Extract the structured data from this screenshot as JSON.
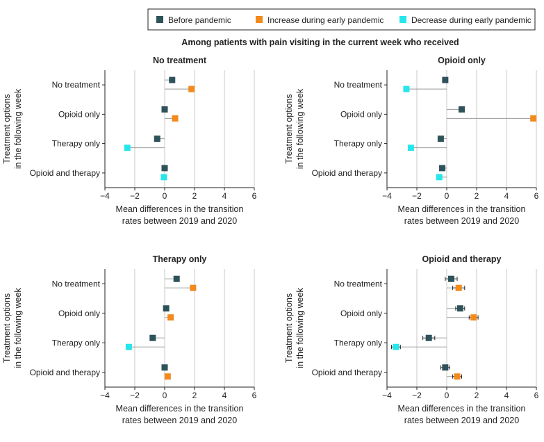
{
  "legend": {
    "items": [
      {
        "label": "Before pandemic",
        "color": "#2e5259"
      },
      {
        "label": "Increase during early pandemic",
        "color": "#f28a1e"
      },
      {
        "label": "Decrease during early pandemic",
        "color": "#27e6ea"
      }
    ]
  },
  "supertitle": "Among patients with pain visiting in the current week who received",
  "chart_data": [
    {
      "type": "scatter",
      "title": "No treatment",
      "xlabel": [
        "Mean differences in the transition",
        "rates between 2019 and 2020"
      ],
      "ylabel": [
        "Treatment options",
        "in the following week"
      ],
      "xlim": [
        -4,
        6
      ],
      "xticks": [
        -4,
        -2,
        0,
        2,
        4,
        6
      ],
      "categories": [
        "No treatment",
        "Opioid only",
        "Therapy only",
        "Opioid and therapy"
      ],
      "before": [
        0.5,
        0.0,
        -0.5,
        0.0
      ],
      "during": [
        1.8,
        0.7,
        -2.5,
        -0.05
      ],
      "before_err": [
        0.15,
        0.15,
        0.15,
        0.1
      ],
      "during_err": [
        0.15,
        0.15,
        0.15,
        0.1
      ]
    },
    {
      "type": "scatter",
      "title": "Opioid only",
      "xlabel": [
        "Mean differences in the transition",
        "rates between 2019 and 2020"
      ],
      "ylabel": [
        "Treatment options",
        "in the following week"
      ],
      "xlim": [
        -4,
        6
      ],
      "xticks": [
        -4,
        -2,
        0,
        2,
        4,
        6
      ],
      "categories": [
        "No treatment",
        "Opioid only",
        "Therapy only",
        "Opioid and therapy"
      ],
      "before": [
        -0.1,
        1.0,
        -0.4,
        -0.3
      ],
      "during": [
        -2.7,
        5.8,
        -2.4,
        -0.5
      ],
      "before_err": [
        0.1,
        0.15,
        0.1,
        0.1
      ],
      "during_err": [
        0.1,
        0.15,
        0.1,
        0.1
      ]
    },
    {
      "type": "scatter",
      "title": "Therapy only",
      "xlabel": [
        "Mean differences in the transition",
        "rates between 2019 and 2020"
      ],
      "ylabel": [
        "Treatment options",
        "in the following week"
      ],
      "xlim": [
        -4,
        6
      ],
      "xticks": [
        -4,
        -2,
        0,
        2,
        4,
        6
      ],
      "categories": [
        "No treatment",
        "Opioid only",
        "Therapy only",
        "Opioid and therapy"
      ],
      "before": [
        0.8,
        0.1,
        -0.8,
        0.0
      ],
      "during": [
        1.9,
        0.4,
        -2.4,
        0.2
      ],
      "before_err": [
        0.15,
        0.1,
        0.15,
        0.1
      ],
      "during_err": [
        0.15,
        0.1,
        0.15,
        0.1
      ]
    },
    {
      "type": "scatter",
      "title": "Opioid and therapy",
      "xlabel": [
        "Mean differences in the transition",
        "rates between 2019 and 2020"
      ],
      "ylabel": [
        "Treatment options",
        "in the following week"
      ],
      "xlim": [
        -4,
        6
      ],
      "xticks": [
        -4,
        -2,
        0,
        2,
        4,
        6
      ],
      "categories": [
        "No treatment",
        "Opioid only",
        "Therapy only",
        "Opioid and therapy"
      ],
      "before": [
        0.3,
        0.9,
        -1.2,
        -0.1
      ],
      "during": [
        0.8,
        1.8,
        -3.4,
        0.7
      ],
      "before_err": [
        0.4,
        0.3,
        0.4,
        0.3
      ],
      "during_err": [
        0.4,
        0.3,
        0.3,
        0.3
      ]
    }
  ]
}
